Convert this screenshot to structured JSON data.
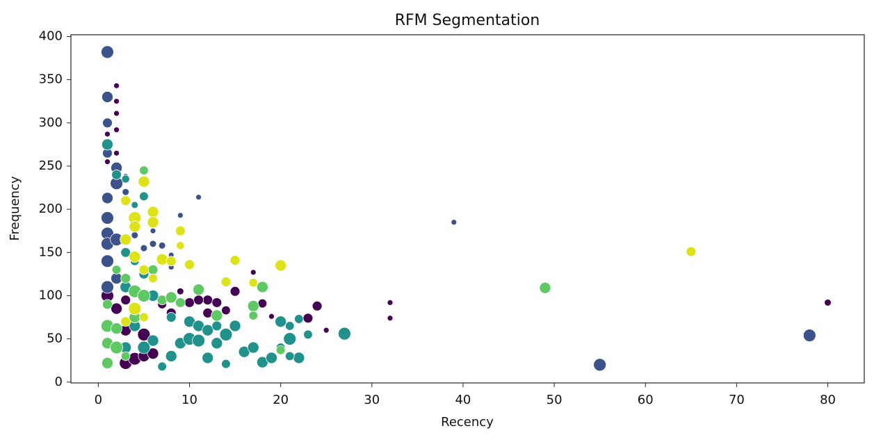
{
  "chart_data": {
    "type": "scatter",
    "title": "RFM Segmentation",
    "x_label": "Recency",
    "y_label": "Frequency",
    "xlim": [
      -3,
      84
    ],
    "ylim": [
      -1,
      402
    ],
    "xticks": [
      0,
      10,
      20,
      30,
      40,
      50,
      60,
      70,
      80
    ],
    "yticks": [
      0,
      50,
      100,
      150,
      200,
      250,
      300,
      350,
      400
    ],
    "series": [
      {
        "color": "#440154",
        "x": [
          2,
          2,
          2,
          2,
          1,
          2,
          1,
          32,
          32,
          80,
          25,
          19,
          24,
          23,
          18,
          15,
          12,
          10,
          11,
          13,
          3,
          4,
          5,
          5,
          6,
          3,
          1,
          2,
          7,
          8,
          3,
          9,
          17,
          12,
          14
        ],
        "values": [
          343,
          325,
          311,
          292,
          287,
          265,
          255,
          92,
          74,
          92,
          60,
          76,
          88,
          74,
          91,
          105,
          95,
          92,
          95,
          92,
          22,
          27,
          55,
          30,
          33,
          60,
          100,
          85,
          90,
          80,
          95,
          105,
          127,
          80,
          83
        ],
        "sizes": [
          20,
          20,
          20,
          20,
          20,
          20,
          20,
          20,
          20,
          30,
          20,
          20,
          60,
          60,
          50,
          60,
          60,
          60,
          60,
          60,
          100,
          100,
          100,
          80,
          80,
          80,
          100,
          80,
          50,
          60,
          60,
          30,
          20,
          60,
          50
        ]
      },
      {
        "color": "#3b528b",
        "x": [
          1,
          1,
          1,
          1,
          39,
          11,
          9,
          7,
          8,
          6,
          5,
          2,
          2,
          1,
          1,
          1,
          1,
          2,
          1,
          2,
          1,
          3,
          3,
          4,
          78,
          55,
          10,
          8,
          6
        ],
        "values": [
          382,
          330,
          300,
          265,
          185,
          214,
          193,
          158,
          147,
          160,
          155,
          248,
          230,
          213,
          190,
          172,
          160,
          165,
          140,
          120,
          110,
          220,
          238,
          170,
          54,
          20,
          135,
          133,
          175
        ],
        "sizes": [
          100,
          80,
          60,
          60,
          20,
          20,
          20,
          30,
          20,
          30,
          30,
          80,
          100,
          80,
          100,
          100,
          100,
          100,
          100,
          80,
          100,
          30,
          20,
          30,
          100,
          100,
          20,
          20,
          20
        ]
      },
      {
        "color": "#21918c",
        "x": [
          1,
          2,
          3,
          4,
          5,
          3,
          4,
          5,
          3,
          6,
          8,
          10,
          11,
          12,
          13,
          14,
          15,
          16,
          17,
          18,
          19,
          20,
          21,
          22,
          22,
          23,
          20,
          27,
          12,
          14,
          7,
          9,
          10,
          8,
          6,
          5,
          4,
          3,
          13,
          11,
          21,
          21
        ],
        "values": [
          275,
          240,
          235,
          205,
          215,
          150,
          140,
          125,
          110,
          100,
          75,
          70,
          65,
          60,
          65,
          55,
          65,
          35,
          40,
          23,
          28,
          70,
          50,
          28,
          73,
          55,
          40,
          56,
          28,
          21,
          18,
          45,
          50,
          30,
          48,
          40,
          65,
          40,
          45,
          48,
          65,
          30
        ],
        "sizes": [
          80,
          60,
          40,
          30,
          50,
          60,
          50,
          60,
          80,
          80,
          60,
          80,
          80,
          80,
          60,
          100,
          80,
          80,
          80,
          80,
          80,
          80,
          100,
          80,
          50,
          50,
          50,
          100,
          80,
          50,
          50,
          80,
          100,
          80,
          80,
          100,
          80,
          80,
          80,
          100,
          50,
          50
        ]
      },
      {
        "color": "#5ec962",
        "x": [
          1,
          1,
          1,
          1,
          2,
          2,
          3,
          4,
          4,
          5,
          5,
          6,
          7,
          8,
          9,
          11,
          13,
          17,
          17,
          18,
          49,
          20,
          3,
          2
        ],
        "values": [
          22,
          45,
          65,
          90,
          40,
          62,
          30,
          75,
          105,
          100,
          245,
          130,
          95,
          98,
          92,
          107,
          77,
          88,
          77,
          110,
          109,
          37,
          120,
          130
        ],
        "sizes": [
          80,
          80,
          100,
          60,
          100,
          80,
          50,
          80,
          100,
          100,
          50,
          60,
          60,
          80,
          60,
          80,
          80,
          80,
          50,
          80,
          80,
          50,
          60,
          50
        ]
      },
      {
        "color": "#dde318",
        "x": [
          65,
          20,
          15,
          14,
          17,
          10,
          9,
          9,
          5,
          6,
          6,
          4,
          4,
          3,
          3,
          4,
          5,
          7,
          8,
          6,
          4,
          3,
          5
        ],
        "values": [
          151,
          135,
          141,
          116,
          115,
          136,
          175,
          158,
          232,
          197,
          185,
          190,
          180,
          210,
          165,
          145,
          130,
          142,
          140,
          120,
          85,
          70,
          75
        ],
        "sizes": [
          60,
          80,
          60,
          60,
          50,
          60,
          60,
          40,
          80,
          80,
          80,
          100,
          80,
          60,
          80,
          80,
          60,
          80,
          60,
          50,
          100,
          60,
          50
        ]
      }
    ]
  }
}
